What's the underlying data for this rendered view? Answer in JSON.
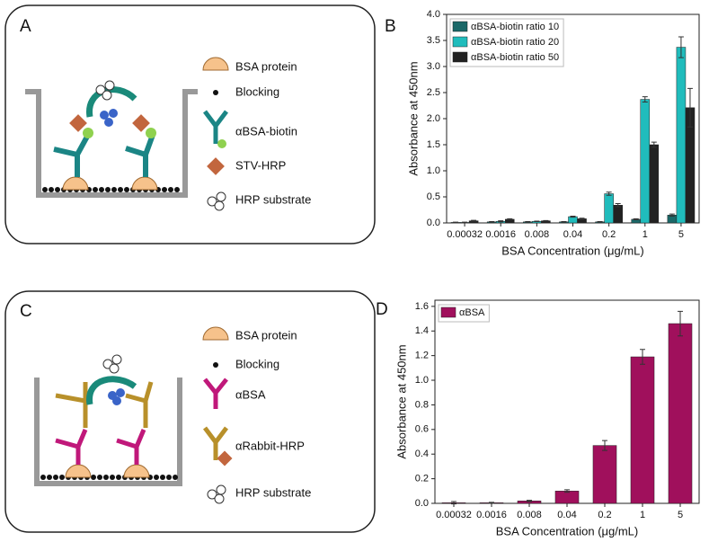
{
  "panels": [
    {
      "label": "A",
      "legend": [
        "BSA protein",
        "Blocking",
        "αBSA-biotin",
        "STV-HRP",
        "HRP substrate"
      ]
    },
    {
      "label": "C",
      "legend": [
        "BSA protein",
        "Blocking",
        "αBSA",
        "αRabbit-HRP",
        "HRP substrate"
      ]
    }
  ],
  "chart_data": [
    {
      "type": "bar",
      "label": "B",
      "xlabel": "BSA Concentration (μg/mL)",
      "ylabel": "Absorbance at 450nm",
      "categories": [
        "0.00032",
        "0.0016",
        "0.008",
        "0.04",
        "0.2",
        "1",
        "5"
      ],
      "series": [
        {
          "name": "αBSA-biotin ratio 10",
          "color": "#1b6868",
          "values": [
            0.01,
            0.02,
            0.02,
            0.02,
            0.02,
            0.07,
            0.15
          ],
          "errors": [
            0.005,
            0.005,
            0.005,
            0.005,
            0.005,
            0.01,
            0.02
          ]
        },
        {
          "name": "αBSA-biotin ratio 20",
          "color": "#20bcbc",
          "values": [
            0.01,
            0.03,
            0.03,
            0.12,
            0.56,
            2.37,
            3.37
          ],
          "errors": [
            0.005,
            0.01,
            0.005,
            0.01,
            0.03,
            0.05,
            0.2
          ]
        },
        {
          "name": "αBSA-biotin ratio 50",
          "color": "#222222",
          "values": [
            0.04,
            0.07,
            0.04,
            0.08,
            0.34,
            1.5,
            2.21
          ],
          "errors": [
            0.01,
            0.01,
            0.005,
            0.01,
            0.03,
            0.05,
            0.37
          ]
        }
      ],
      "ylim": [
        0,
        4
      ],
      "yticks": [
        {
          "value": 0,
          "label": "0.0"
        },
        0.5,
        {
          "value": 1,
          "label": "1.0"
        },
        1.5,
        {
          "value": 2,
          "label": "2.0"
        },
        2.5,
        {
          "value": 3,
          "label": "3.0"
        },
        3.5,
        {
          "value": 4,
          "label": "4.0"
        }
      ],
      "legend": "upper left"
    },
    {
      "type": "bar",
      "label": "D",
      "xlabel": "BSA Concentration (μg/mL)",
      "ylabel": "Absorbance at 450nm",
      "categories": [
        "0.00032",
        "0.0016",
        "0.008",
        "0.04",
        "0.2",
        "1",
        "5"
      ],
      "series": [
        {
          "name": "αBSA",
          "color": "#a0105c",
          "values": [
            0.005,
            0.005,
            0.02,
            0.1,
            0.47,
            1.19,
            1.46
          ],
          "errors": [
            0.01,
            0.003,
            0.005,
            0.01,
            0.04,
            0.06,
            0.1
          ]
        }
      ],
      "ylim": [
        0,
        1.65
      ],
      "yticks": [
        {
          "value": 0,
          "label": "0.0"
        },
        0.2,
        0.4,
        0.6,
        0.8,
        {
          "value": 1,
          "label": "1.0"
        },
        1.2,
        1.4,
        1.6
      ],
      "legend": "upper left"
    }
  ]
}
